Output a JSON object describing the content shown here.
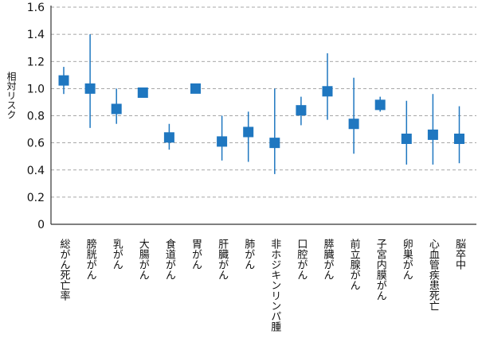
{
  "chart_data": {
    "type": "scatter",
    "subtype": "point-estimate-with-interval",
    "title": "",
    "xlabel": "",
    "ylabel": "相対リスク",
    "ylim": [
      0,
      1.6
    ],
    "yticks": [
      "0",
      "0.2",
      "0.4",
      "0.6",
      "0.8",
      "1.0",
      "1.2",
      "1.4",
      "1.6"
    ],
    "grid": true,
    "legend": "none",
    "colors": {
      "marker": "#1f77c0",
      "errorbar": "#1f77c0",
      "grid": "#8a8a8a",
      "axis": "#333333",
      "text": "#111111"
    },
    "categories": [
      "総がん死亡率",
      "膀胱がん",
      "乳がん",
      "大腸がん",
      "食道がん",
      "胃がん",
      "肝臓がん",
      "肺がん",
      "非ホジキンリンパ腫",
      "口腔がん",
      "膵臓がん",
      "前立腺がん",
      "子宮内膜がん",
      "卵巣がん",
      "心血管疾患死亡",
      "脳卒中"
    ],
    "values": [
      1.06,
      1.0,
      0.85,
      0.97,
      0.64,
      1.0,
      0.61,
      0.68,
      0.6,
      0.84,
      0.98,
      0.74,
      0.88,
      0.63,
      0.66,
      0.63
    ],
    "lower": [
      0.96,
      0.71,
      0.74,
      0.97,
      0.55,
      1.0,
      0.47,
      0.46,
      0.37,
      0.73,
      0.77,
      0.52,
      0.83,
      0.44,
      0.44,
      0.45
    ],
    "upper": [
      1.16,
      1.4,
      1.0,
      0.97,
      0.74,
      1.0,
      0.8,
      0.83,
      1.0,
      0.94,
      1.26,
      1.08,
      0.94,
      0.91,
      0.96,
      0.87
    ]
  }
}
